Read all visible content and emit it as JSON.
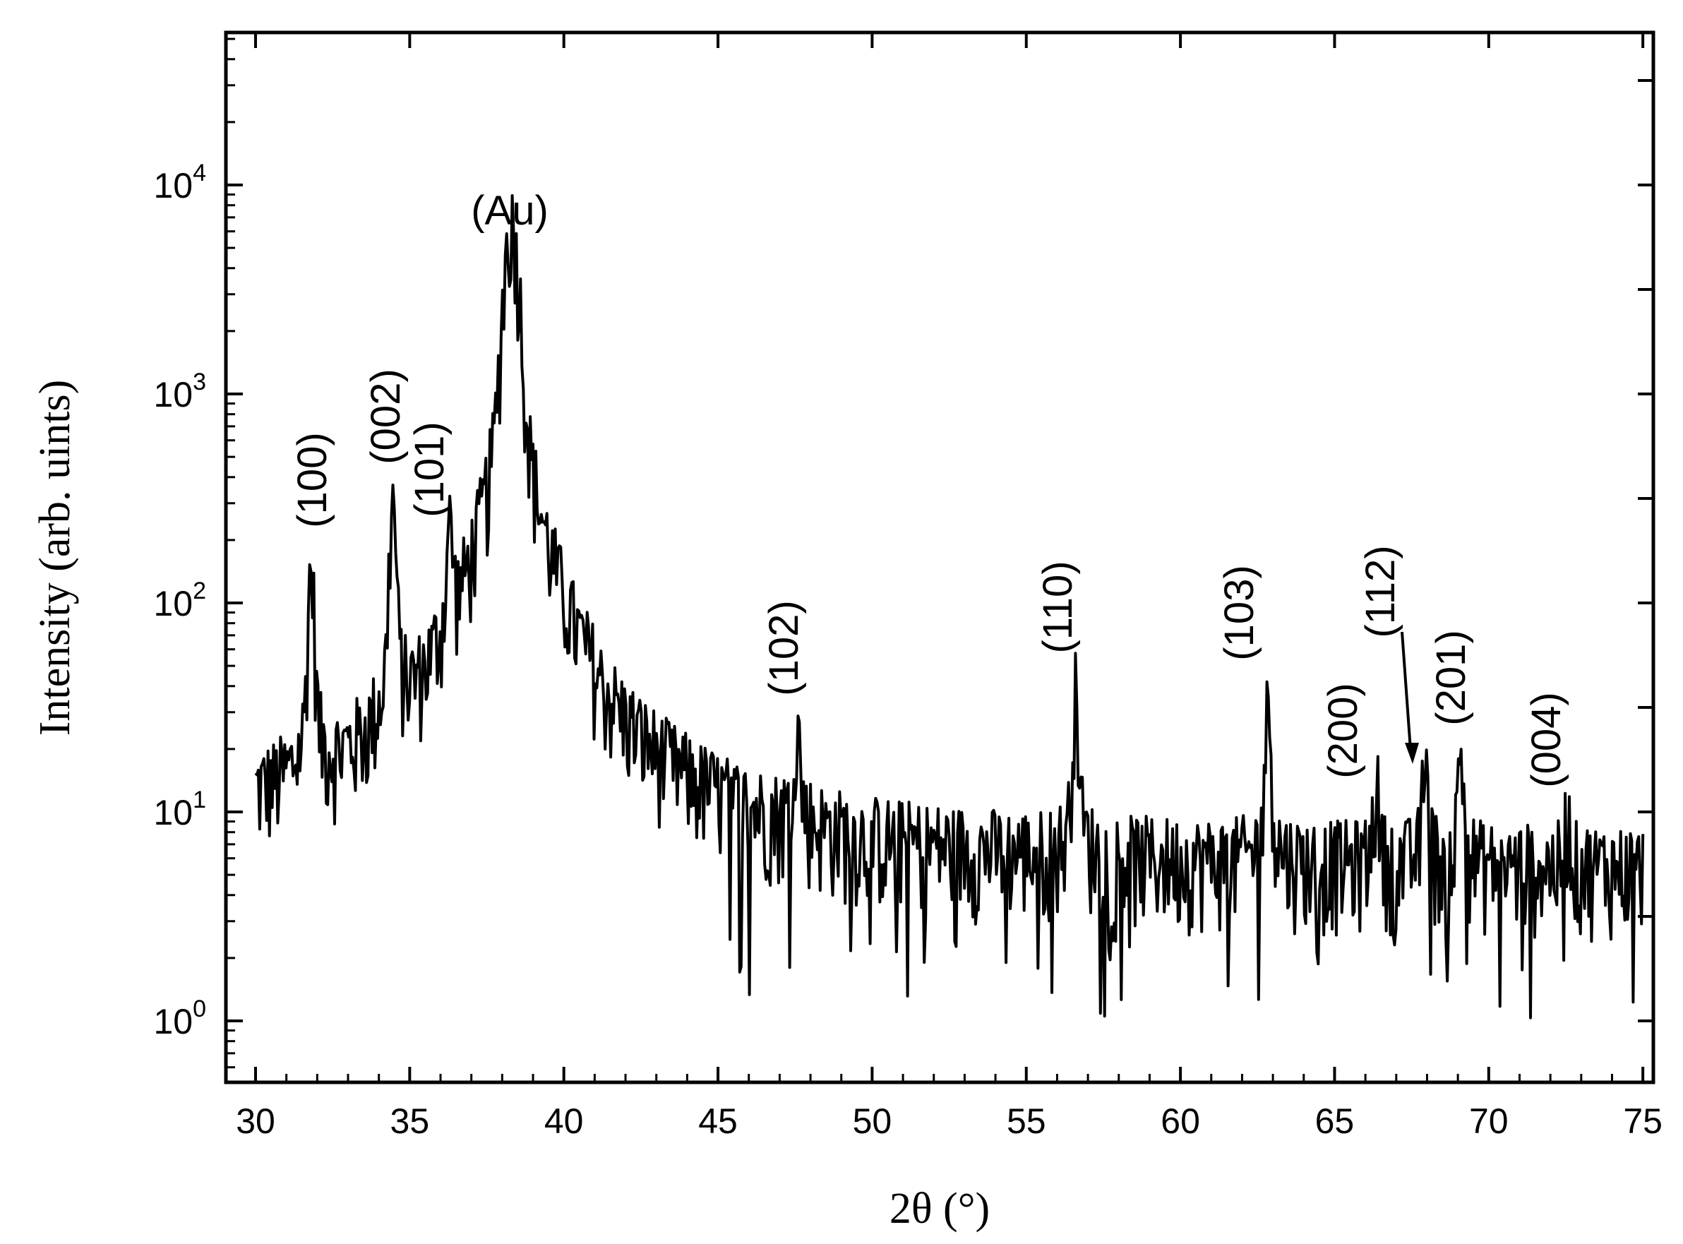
{
  "chart_data": {
    "type": "line",
    "title": "",
    "xlabel": "2θ (°)",
    "ylabel": "Intensity (arb. uints)",
    "xlim": [
      29,
      76
    ],
    "ylim": [
      0.5,
      60000
    ],
    "y_scale": "log",
    "grid": false,
    "legend": "none",
    "x_ticks": [
      30,
      35,
      40,
      45,
      50,
      55,
      60,
      65,
      70,
      75
    ],
    "x_tick_labels": [
      "30",
      "35",
      "40",
      "45",
      "50",
      "55",
      "60",
      "65",
      "70",
      "75"
    ],
    "y_ticks": [
      {
        "base": "10",
        "exp": "0",
        "value": 1
      },
      {
        "base": "10",
        "exp": "1",
        "value": 10
      },
      {
        "base": "10",
        "exp": "2",
        "value": 100
      },
      {
        "base": "10",
        "exp": "3",
        "value": 1000
      },
      {
        "base": "10",
        "exp": "4",
        "value": 10000
      }
    ],
    "background_level": 5,
    "x_range": [
      30,
      75
    ],
    "peaks": [
      {
        "x": 31.8,
        "y": 140,
        "label": "(100)"
      },
      {
        "x": 34.45,
        "y": 290,
        "label": "(002)"
      },
      {
        "x": 36.3,
        "y": 170,
        "label": "(101)"
      },
      {
        "x": 38.3,
        "y": 6800,
        "label": "(Au)"
      },
      {
        "x": 47.55,
        "y": 26,
        "label": "(102)"
      },
      {
        "x": 56.6,
        "y": 38,
        "label": "(110)"
      },
      {
        "x": 62.85,
        "y": 32,
        "label": "(103)"
      },
      {
        "x": 66.35,
        "y": 13,
        "label": "(200)"
      },
      {
        "x": 67.95,
        "y": 17,
        "label": "(112)"
      },
      {
        "x": 69.1,
        "y": 19,
        "label": "(201)"
      },
      {
        "x": 72.55,
        "y": 9,
        "label": "(004)"
      }
    ]
  }
}
